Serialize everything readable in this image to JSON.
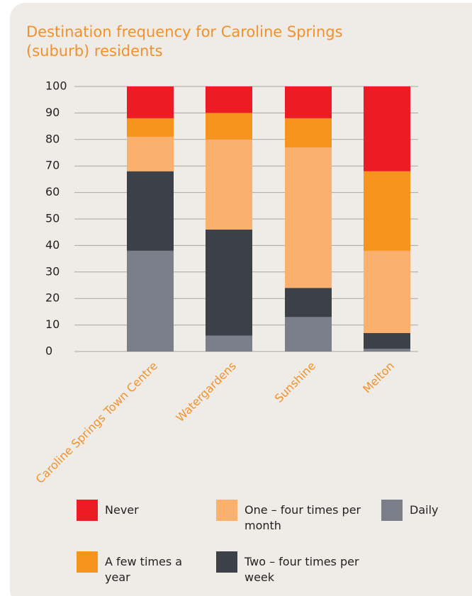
{
  "chart_data": {
    "type": "stacked_bar",
    "title": "Destination frequency for Caroline Springs (suburb) residents",
    "categories": [
      "Caroline Springs Town Centre",
      "Watergardens",
      "Sunshine",
      "Melton"
    ],
    "series": [
      {
        "name": "Daily",
        "color": "#7b7f8a",
        "values": [
          38,
          6,
          13,
          1
        ]
      },
      {
        "name": "Two – four times per week",
        "color": "#3c4049",
        "values": [
          30,
          40,
          11,
          6
        ]
      },
      {
        "name": "One – four times per month",
        "color": "#fbb06e",
        "values": [
          13,
          34,
          53,
          31
        ]
      },
      {
        "name": "A few times a year",
        "color": "#f7941d",
        "values": [
          7,
          10,
          11,
          30
        ]
      },
      {
        "name": "Never",
        "color": "#ed1c24",
        "values": [
          12,
          10,
          12,
          32
        ]
      }
    ],
    "ylim": [
      0,
      100
    ],
    "yticks": [
      0,
      10,
      20,
      30,
      40,
      50,
      60,
      70,
      80,
      90,
      100
    ],
    "grid": true
  }
}
